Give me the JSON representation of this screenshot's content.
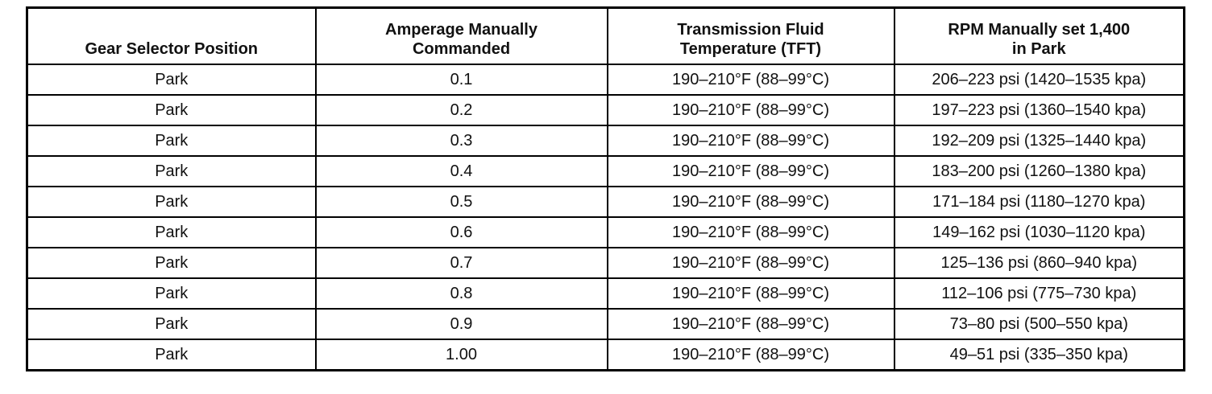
{
  "table": {
    "header": [
      [
        "Gear Selector Position"
      ],
      [
        "Amperage Manually",
        "Commanded"
      ],
      [
        "Transmission Fluid",
        "Temperature (TFT)"
      ],
      [
        "RPM Manually set 1,400",
        "in Park"
      ]
    ],
    "rows": [
      [
        "Park",
        "0.1",
        "190–210°F (88–99°C)",
        "206–223 psi (1420–1535 kpa)"
      ],
      [
        "Park",
        "0.2",
        "190–210°F (88–99°C)",
        "197–223 psi (1360–1540 kpa)"
      ],
      [
        "Park",
        "0.3",
        "190–210°F (88–99°C)",
        "192–209 psi (1325–1440 kpa)"
      ],
      [
        "Park",
        "0.4",
        "190–210°F (88–99°C)",
        "183–200 psi (1260–1380 kpa)"
      ],
      [
        "Park",
        "0.5",
        "190–210°F (88–99°C)",
        "171–184 psi (1180–1270 kpa)"
      ],
      [
        "Park",
        "0.6",
        "190–210°F (88–99°C)",
        "149–162 psi (1030–1120 kpa)"
      ],
      [
        "Park",
        "0.7",
        "190–210°F (88–99°C)",
        "125–136 psi (860–940 kpa)"
      ],
      [
        "Park",
        "0.8",
        "190–210°F (88–99°C)",
        "112–106 psi (775–730 kpa)"
      ],
      [
        "Park",
        "0.9",
        "190–210°F (88–99°C)",
        "73–80 psi (500–550 kpa)"
      ],
      [
        "Park",
        "1.00",
        "190–210°F (88–99°C)",
        "49–51 psi (335–350 kpa)"
      ]
    ]
  }
}
